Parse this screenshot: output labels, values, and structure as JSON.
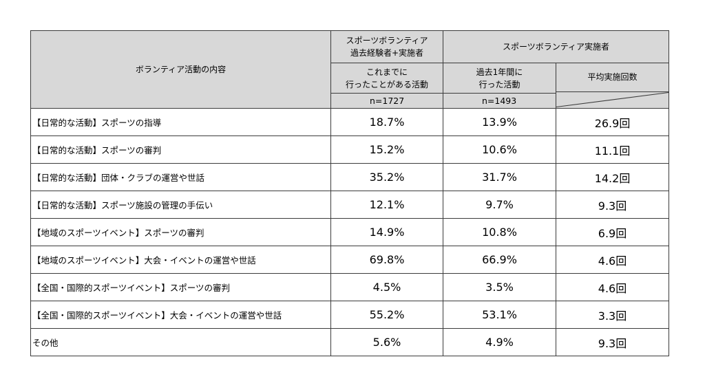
{
  "header": {
    "item_col": "ボランティア活動の内容",
    "group1_line1": "スポーツボランティア",
    "group1_line2": "過去経験者+実施者",
    "group2": "スポーツボランティア実施者",
    "col1_line1": "これまでに",
    "col1_line2": "行ったことがある活動",
    "col2_line1": "過去1年間に",
    "col2_line2": "行った活動",
    "col3": "平均実施回数",
    "n1": "n=1727",
    "n2": "n=1493"
  },
  "rows": [
    {
      "label": "【日常的な活動】スポーツの指導",
      "past": "18.7%",
      "year": "13.9%",
      "avg": "26.9回"
    },
    {
      "label": "【日常的な活動】スポーツの審判",
      "past": "15.2%",
      "year": "10.6%",
      "avg": "11.1回"
    },
    {
      "label": "【日常的な活動】団体・クラブの運営や世話",
      "past": "35.2%",
      "year": "31.7%",
      "avg": "14.2回"
    },
    {
      "label": "【日常的な活動】スポーツ施設の管理の手伝い",
      "past": "12.1%",
      "year": "9.7%",
      "avg": "9.3回"
    },
    {
      "label": "【地域のスポーツイベント】スポーツの審判",
      "past": "14.9%",
      "year": "10.8%",
      "avg": "6.9回"
    },
    {
      "label": "【地域のスポーツイベント】大会・イベントの運営や世話",
      "past": "69.8%",
      "year": "66.9%",
      "avg": "4.6回"
    },
    {
      "label": "【全国・国際的スポーツイベント】スポーツの審判",
      "past": "4.5%",
      "year": "3.5%",
      "avg": "4.6回"
    },
    {
      "label": "【全国・国際的スポーツイベント】大会・イベントの運営や世話",
      "past": "55.2%",
      "year": "53.1%",
      "avg": "3.3回"
    },
    {
      "label": "その他",
      "past": "5.6%",
      "year": "4.9%",
      "avg": "9.3回"
    }
  ],
  "colors": {
    "header_bg": "#d8d8d8",
    "border": "#3a3a3a",
    "body_bg": "#ffffff"
  }
}
